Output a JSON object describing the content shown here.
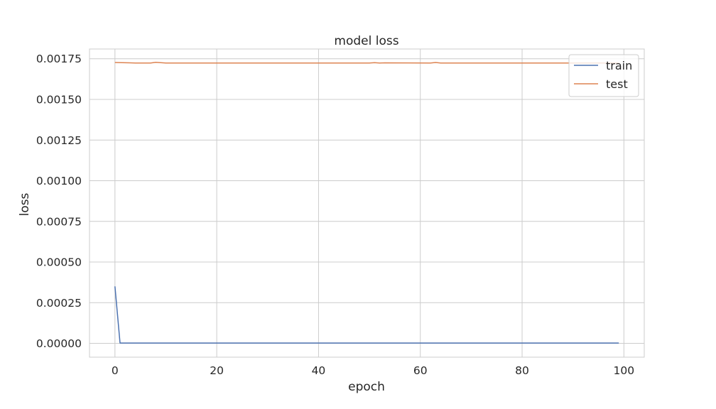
{
  "chart_data": {
    "type": "line",
    "title": "model loss",
    "xlabel": "epoch",
    "ylabel": "loss",
    "xlim": [
      -5,
      104
    ],
    "ylim": [
      -8.5e-05,
      0.00181
    ],
    "grid": true,
    "legend_position": "top-right",
    "xticks": [
      0,
      20,
      40,
      60,
      80,
      100
    ],
    "xtick_labels": [
      "0",
      "20",
      "40",
      "60",
      "80",
      "100"
    ],
    "yticks": [
      0,
      0.00025,
      0.0005,
      0.00075,
      0.001,
      0.00125,
      0.0015,
      0.00175
    ],
    "ytick_labels": [
      "0.00000",
      "0.00025",
      "0.00050",
      "0.00075",
      "0.00100",
      "0.00125",
      "0.00150",
      "0.00175"
    ],
    "series": [
      {
        "name": "train",
        "color": "#4c72b0",
        "x": [
          0,
          1,
          99
        ],
        "y": [
          0.00035,
          2e-06,
          2e-06
        ]
      },
      {
        "name": "test",
        "color": "#dd8452",
        "x": [
          0,
          3,
          4,
          7,
          8,
          10,
          20,
          50,
          51,
          52,
          53,
          62,
          63,
          64,
          99
        ],
        "y": [
          0.001727,
          0.001725,
          0.001724,
          0.001724,
          0.001728,
          0.001724,
          0.001724,
          0.001724,
          0.001726,
          0.001724,
          0.001725,
          0.001724,
          0.001727,
          0.001724,
          0.001724
        ]
      }
    ]
  }
}
